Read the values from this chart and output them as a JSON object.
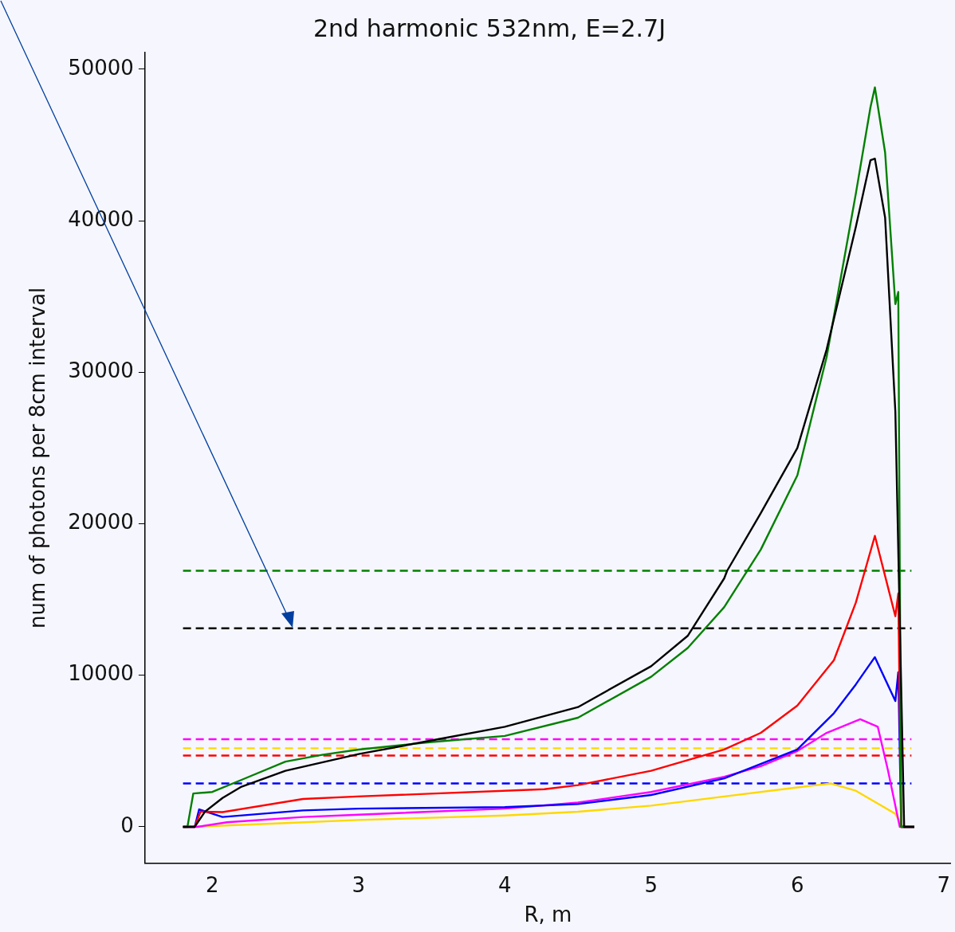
{
  "chart_data": {
    "type": "line",
    "title": "2nd harmonic 532nm, E=2.7J",
    "xlabel": "R, m",
    "ylabel": "num of photons per 8cm interval",
    "xlim": [
      1.54,
      7.05
    ],
    "xticks": [
      2,
      3,
      4,
      5,
      6,
      7
    ],
    "ylim": [
      -2400,
      51100
    ],
    "yticks": [
      0,
      10000,
      20000,
      30000,
      40000,
      50000
    ],
    "grid": false,
    "legend": false,
    "marker": "none",
    "series": [
      {
        "color": "#000000",
        "x": [
          1.8,
          1.88,
          1.95,
          2.07,
          2.2,
          2.5,
          3,
          3.5,
          4,
          4.5,
          5,
          5.25,
          5.5,
          5.52,
          5.75,
          6,
          6.2,
          6.4,
          6.5,
          6.53,
          6.6,
          6.67,
          6.73,
          6.8
        ],
        "values": [
          0,
          0,
          1000,
          1900,
          2650,
          3700,
          4800,
          5700,
          6600,
          7900,
          10600,
          12600,
          16400,
          16900,
          20700,
          25000,
          31500,
          39600,
          44000,
          44100,
          40200,
          27400,
          0,
          0
        ]
      },
      {
        "color": "#008000",
        "x": [
          1.8,
          1.83,
          1.87,
          2,
          2.2,
          2.5,
          2.75,
          3,
          3.5,
          4,
          4.5,
          5,
          5.25,
          5.5,
          5.75,
          6,
          6.2,
          6.4,
          6.5,
          6.53,
          6.6,
          6.67,
          6.69,
          6.71,
          6.8
        ],
        "values": [
          0,
          0,
          2200,
          2300,
          3100,
          4300,
          4750,
          5100,
          5600,
          6000,
          7200,
          9900,
          11800,
          14500,
          18300,
          23200,
          31000,
          41800,
          47500,
          48800,
          44500,
          34500,
          35300,
          0,
          0
        ]
      },
      {
        "color": "#ff0000",
        "x": [
          1.8,
          1.88,
          1.92,
          2.07,
          2.62,
          2.99,
          4.27,
          4.5,
          5,
          5.5,
          5.75,
          6,
          6.25,
          6.4,
          6.53,
          6.67,
          6.69,
          6.71,
          6.8
        ],
        "values": [
          0,
          0,
          1000,
          970,
          1840,
          2000,
          2480,
          2750,
          3700,
          5100,
          6200,
          8000,
          11000,
          14800,
          19200,
          13900,
          15400,
          0,
          0
        ]
      },
      {
        "color": "#0000ff",
        "x": [
          1.8,
          1.88,
          1.91,
          2.07,
          2.62,
          3,
          4,
          4.5,
          5,
          5.5,
          6,
          6.25,
          6.4,
          6.53,
          6.67,
          6.69,
          6.71,
          6.8
        ],
        "values": [
          0,
          0,
          1150,
          650,
          1080,
          1200,
          1300,
          1500,
          2100,
          3200,
          5100,
          7500,
          9400,
          11200,
          8300,
          10200,
          0,
          0
        ]
      },
      {
        "color": "#ff00ff",
        "x": [
          1.8,
          1.9,
          2.1,
          2.62,
          3,
          4,
          4.5,
          5,
          5.5,
          5.75,
          6,
          6.2,
          6.43,
          6.55,
          6.62,
          6.7,
          6.8
        ],
        "values": [
          0,
          0,
          300,
          650,
          800,
          1200,
          1600,
          2300,
          3300,
          4000,
          5000,
          6200,
          7100,
          6600,
          3700,
          0,
          0
        ]
      },
      {
        "color": "#ffd700",
        "x": [
          1.8,
          2,
          2.5,
          3,
          4,
          4.5,
          5,
          5.5,
          6,
          6.23,
          6.4,
          6.67,
          6.72,
          6.8
        ],
        "values": [
          0,
          50,
          250,
          450,
          750,
          1000,
          1400,
          2000,
          2600,
          2860,
          2380,
          860,
          0,
          0
        ]
      },
      {
        "color": "#008000",
        "line_style": "dashed",
        "x": [
          1.8,
          6.78
        ],
        "values": [
          16900,
          16900
        ]
      },
      {
        "color": "#000000",
        "line_style": "dashed",
        "x": [
          1.8,
          6.78
        ],
        "values": [
          13100,
          13100
        ]
      },
      {
        "color": "#ff00ff",
        "line_style": "dashed",
        "x": [
          1.8,
          6.78
        ],
        "values": [
          5780,
          5780
        ]
      },
      {
        "color": "#ffd700",
        "line_style": "dashed",
        "x": [
          1.8,
          6.78
        ],
        "values": [
          5180,
          5180
        ]
      },
      {
        "color": "#ff0000",
        "line_style": "dashed",
        "x": [
          1.8,
          6.78
        ],
        "values": [
          4700,
          4700
        ]
      },
      {
        "color": "#0000ff",
        "line_style": "dashed",
        "x": [
          1.8,
          6.78
        ],
        "values": [
          2860,
          2860
        ]
      }
    ]
  }
}
